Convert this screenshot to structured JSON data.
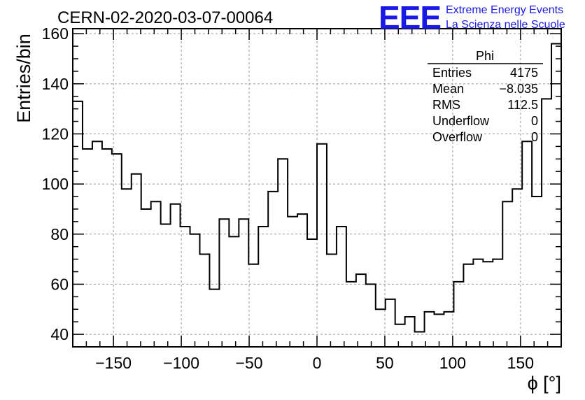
{
  "title": "CERN-02-2020-03-07-00064",
  "logo": {
    "mark": "EEE",
    "line1": "Extreme Energy Events",
    "line2": "La Scienza nelle Scuole",
    "color": "#1a1ae6"
  },
  "stats_box": {
    "name": "Phi",
    "rows": [
      {
        "label": "Entries",
        "value": "4175"
      },
      {
        "label": "Mean",
        "value": "−8.035"
      },
      {
        "label": "RMS",
        "value": "112.5"
      },
      {
        "label": "Underflow",
        "value": "0"
      },
      {
        "label": "Overflow",
        "value": "0"
      }
    ]
  },
  "chart_data": {
    "type": "bar",
    "histogram": true,
    "xlabel": "ϕ [°]",
    "ylabel": "Entries/bin",
    "xlim": [
      -180,
      180
    ],
    "ylim": [
      35,
      162
    ],
    "x_ticks": [
      -150,
      -100,
      -50,
      0,
      50,
      100,
      150
    ],
    "x_tick_labels": [
      "−150",
      "−100",
      "−50",
      "0",
      "50",
      "100",
      "150"
    ],
    "y_ticks": [
      40,
      60,
      80,
      100,
      120,
      140,
      160
    ],
    "y_tick_labels": [
      "40",
      "60",
      "80",
      "100",
      "120",
      "140",
      "160"
    ],
    "grid": true,
    "bin_edges_range": [
      -180,
      180
    ],
    "bins": 50,
    "values": [
      133,
      114,
      117,
      114,
      112,
      98,
      104,
      90,
      93,
      84,
      92,
      83,
      80,
      72,
      58,
      86,
      79,
      86,
      68,
      83,
      97,
      110,
      87,
      88,
      78,
      116,
      72,
      83,
      61,
      64,
      60,
      50,
      54,
      44,
      47,
      41,
      49,
      48,
      49,
      61,
      68,
      70,
      69,
      70,
      93,
      98,
      117,
      95,
      134,
      156
    ]
  }
}
